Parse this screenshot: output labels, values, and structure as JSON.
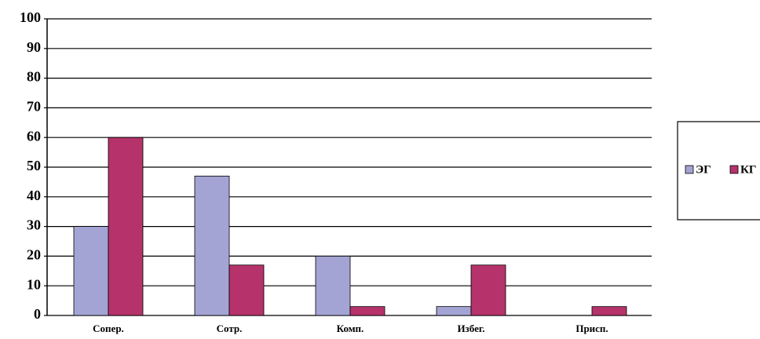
{
  "chart_data": {
    "type": "bar",
    "categories": [
      "Сопер.",
      "Сотр.",
      "Комп.",
      "Избег.",
      "Присп."
    ],
    "series": [
      {
        "name": "ЭГ",
        "color": "#a3a3d4",
        "values": [
          30,
          47,
          20,
          3,
          0
        ]
      },
      {
        "name": "КГ",
        "color": "#b5336a",
        "values": [
          60,
          17,
          3,
          17,
          3
        ]
      }
    ],
    "ylim": [
      0,
      100
    ],
    "yticks": [
      0,
      10,
      20,
      30,
      40,
      50,
      60,
      70,
      80,
      90,
      100
    ],
    "grid": true,
    "legend": "right"
  }
}
